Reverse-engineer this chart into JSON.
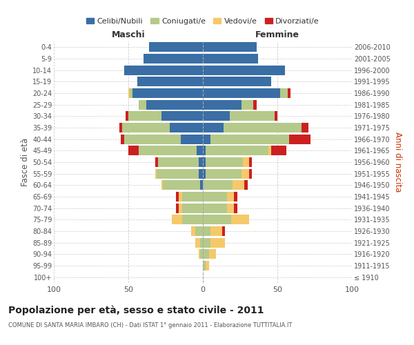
{
  "age_groups": [
    "100+",
    "95-99",
    "90-94",
    "85-89",
    "80-84",
    "75-79",
    "70-74",
    "65-69",
    "60-64",
    "55-59",
    "50-54",
    "45-49",
    "40-44",
    "35-39",
    "30-34",
    "25-29",
    "20-24",
    "15-19",
    "10-14",
    "5-9",
    "0-4"
  ],
  "birth_years": [
    "≤ 1910",
    "1911-1915",
    "1916-1920",
    "1921-1925",
    "1926-1930",
    "1931-1935",
    "1936-1940",
    "1941-1945",
    "1946-1950",
    "1951-1955",
    "1956-1960",
    "1961-1965",
    "1966-1970",
    "1971-1975",
    "1976-1980",
    "1981-1985",
    "1986-1990",
    "1991-1995",
    "1996-2000",
    "2001-2005",
    "2006-2010"
  ],
  "maschi": {
    "celibi": [
      0,
      0,
      0,
      0,
      0,
      0,
      0,
      0,
      2,
      3,
      3,
      4,
      15,
      22,
      28,
      38,
      47,
      44,
      53,
      40,
      36
    ],
    "coniugati": [
      0,
      0,
      2,
      2,
      5,
      14,
      14,
      14,
      25,
      28,
      27,
      39,
      38,
      32,
      22,
      5,
      2,
      0,
      0,
      0,
      0
    ],
    "vedovi": [
      0,
      0,
      1,
      3,
      3,
      7,
      2,
      2,
      1,
      1,
      0,
      0,
      0,
      0,
      0,
      0,
      1,
      0,
      0,
      0,
      0
    ],
    "divorziati": [
      0,
      0,
      0,
      0,
      0,
      0,
      2,
      2,
      0,
      0,
      2,
      7,
      2,
      2,
      2,
      0,
      0,
      0,
      0,
      0,
      0
    ]
  },
  "femmine": {
    "nubili": [
      0,
      0,
      0,
      0,
      0,
      0,
      0,
      0,
      0,
      2,
      2,
      2,
      5,
      14,
      18,
      26,
      52,
      46,
      55,
      37,
      36
    ],
    "coniugate": [
      0,
      2,
      4,
      5,
      5,
      19,
      16,
      16,
      20,
      24,
      25,
      42,
      53,
      52,
      30,
      8,
      5,
      0,
      0,
      0,
      0
    ],
    "vedove": [
      0,
      2,
      5,
      10,
      8,
      12,
      5,
      5,
      8,
      5,
      4,
      2,
      0,
      0,
      0,
      0,
      0,
      0,
      0,
      0,
      0
    ],
    "divorziate": [
      0,
      0,
      0,
      0,
      2,
      0,
      2,
      2,
      2,
      2,
      2,
      10,
      14,
      5,
      2,
      2,
      2,
      0,
      0,
      0,
      0
    ]
  },
  "colors": {
    "celibi": "#3a6ea5",
    "coniugati": "#b5c98a",
    "vedovi": "#f5c96a",
    "divorziati": "#cc2020"
  },
  "xlim": 100,
  "title": "Popolazione per età, sesso e stato civile - 2011",
  "subtitle": "COMUNE DI SANTA MARIA IMBARO (CH) - Dati ISTAT 1° gennaio 2011 - Elaborazione TUTTITALIA.IT",
  "ylabel_left": "Fasce di età",
  "ylabel_right": "Anni di nascita",
  "xlabel_maschi": "Maschi",
  "xlabel_femmine": "Femmine",
  "legend_labels": [
    "Celibi/Nubili",
    "Coniugati/e",
    "Vedovi/e",
    "Divorziati/e"
  ],
  "bg_color": "#ffffff",
  "grid_color": "#cccccc",
  "text_color": "#555555",
  "title_color": "#222222",
  "right_ylabel_color": "#cc3300"
}
